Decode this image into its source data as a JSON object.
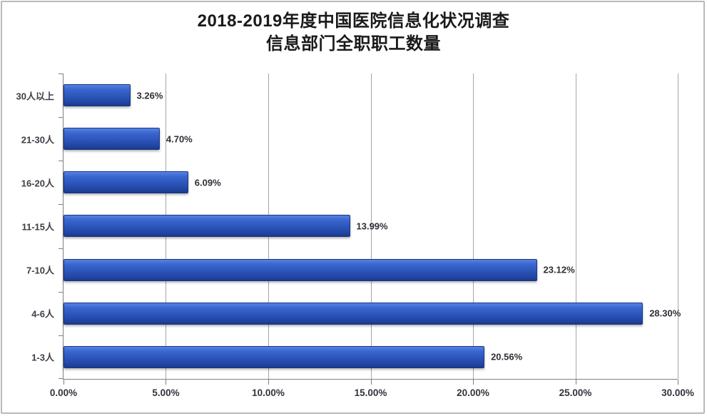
{
  "title": {
    "line1": "2018-2019年度中国医院信息化状况调查",
    "line2": "信息部门全职职工数量"
  },
  "chart_data": {
    "type": "bar",
    "orientation": "horizontal",
    "title": "2018-2019年度中国医院信息化状况调查 信息部门全职职工数量",
    "categories": [
      "30人以上",
      "21-30人",
      "16-20人",
      "11-15人",
      "7-10人",
      "4-6人",
      "1-3人"
    ],
    "values": [
      3.26,
      4.7,
      6.09,
      13.99,
      23.12,
      28.3,
      20.56
    ],
    "value_labels": [
      "3.26%",
      "4.70%",
      "6.09%",
      "13.99%",
      "23.12%",
      "28.30%",
      "20.56%"
    ],
    "x_tick_labels": [
      "0.00%",
      "5.00%",
      "10.00%",
      "15.00%",
      "20.00%",
      "25.00%",
      "30.00%"
    ],
    "x_tick_values": [
      0,
      5,
      10,
      15,
      20,
      25,
      30
    ],
    "xlim": [
      0,
      30
    ],
    "xlabel": "",
    "ylabel": "",
    "grid": true,
    "legend": false,
    "colors": {
      "bar_top": "#5583e4",
      "bar_mid": "#2c55b9",
      "bar_bottom": "#1c3a8c",
      "bar_border": "#1b3680",
      "gridline": "#a6a6a6",
      "axis": "#7f7f7f",
      "text": "#3d3d46",
      "title_text": "#1a1a1a",
      "frame_border": "#b9b9b9",
      "background": "#ffffff"
    }
  }
}
